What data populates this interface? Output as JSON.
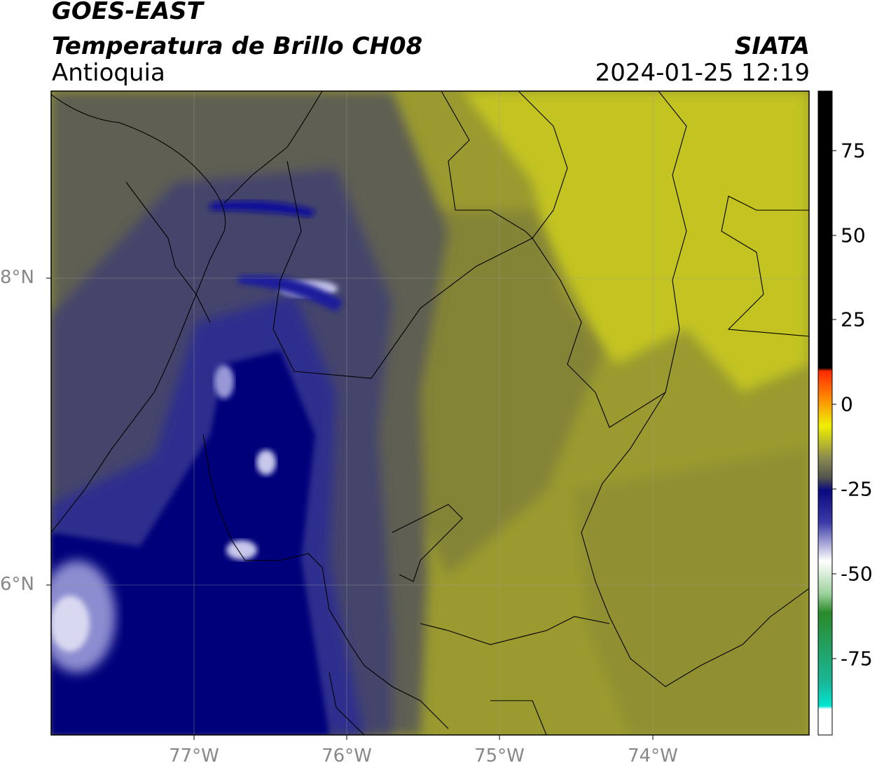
{
  "header": {
    "satellite": "GOES-EAST",
    "product": "Temperatura de Brillo CH08",
    "region": "Antioquia",
    "agency": "SIATA",
    "datetime": "2024-01-25 12:19"
  },
  "axes": {
    "lat_labels": [
      "8°N",
      "6°N"
    ],
    "lon_labels": [
      "77°W",
      "76°W",
      "75°W",
      "74°W"
    ]
  },
  "colorbar": {
    "tick_labels": [
      "75",
      "50",
      "25",
      "0",
      "-25",
      "-50",
      "-75"
    ],
    "ticks": [
      75,
      50,
      25,
      0,
      -25,
      -50,
      -75
    ],
    "range": [
      -95,
      92
    ],
    "colors": {
      "max": "#000000",
      "red": "#ff2a00",
      "orange": "#ff9900",
      "yellow": "#f0f000",
      "olive": "#b8b82a",
      "gray": "#55554d",
      "navy": "#0a0a80",
      "white": "#ffffff",
      "green": "#2a8a2a",
      "cyan": "#00e5d0"
    }
  },
  "map_colors": {
    "olive_bright": "#c3c324",
    "olive": "#9a9a30",
    "olive_dark": "#7c7c3a",
    "gray": "#5e5e52",
    "slate": "#45456c",
    "navy_light": "#2e2e8e",
    "navy": "#06067a",
    "pale": "#b8b8e0"
  }
}
